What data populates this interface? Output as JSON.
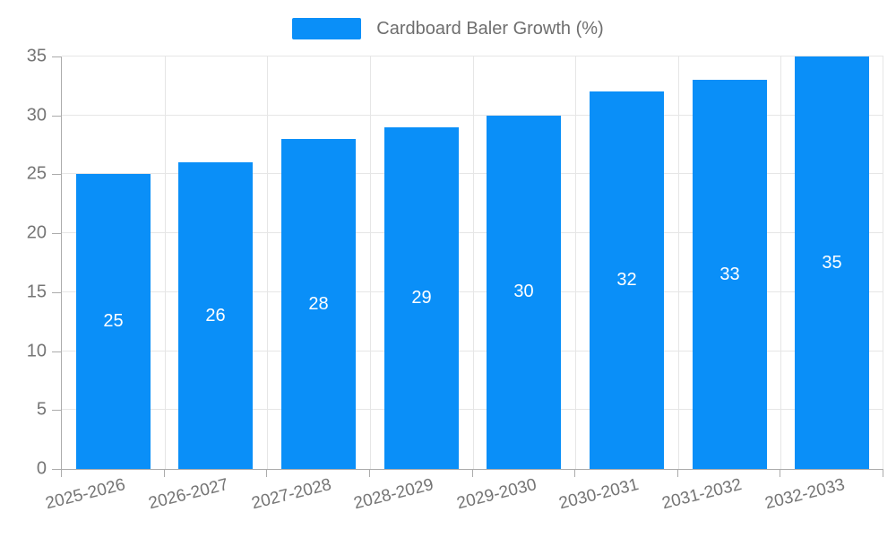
{
  "legend": {
    "label": "Cardboard Baler Growth (%)"
  },
  "chart_data": {
    "type": "bar",
    "title": "Cardboard Baler Growth (%)",
    "categories": [
      "2025-2026",
      "2026-2027",
      "2027-2028",
      "2028-2029",
      "2029-2030",
      "2030-2031",
      "2031-2032",
      "2032-2033"
    ],
    "values": [
      25,
      26,
      28,
      29,
      30,
      32,
      33,
      35
    ],
    "xlabel": "",
    "ylabel": "",
    "ylim": [
      0,
      35
    ],
    "y_ticks": [
      0,
      5,
      10,
      15,
      20,
      25,
      30,
      35
    ],
    "grid": true,
    "legend_position": "top-center",
    "value_label_position": "inside-center",
    "colors": {
      "bar": "#0A8FF8",
      "value_label": "#FFFFFF",
      "axis_text": "#757575",
      "legend_text": "#6E6E6E",
      "grid_line": "#E6E6E6",
      "axis_line": "#ABABAB",
      "background": "#FFFFFF"
    }
  }
}
